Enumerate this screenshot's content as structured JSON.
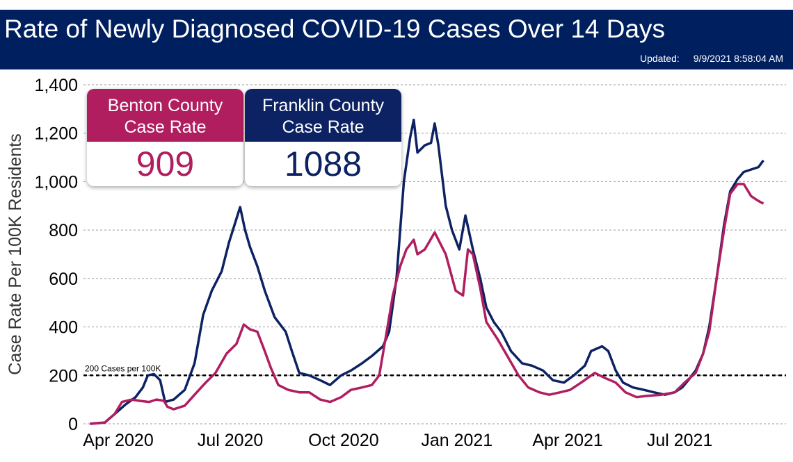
{
  "header": {
    "title": "Rate of Newly Diagnosed COVID-19 Cases Over 14 Days",
    "updated_label": "Updated:",
    "updated_value": "9/9/2021 8:58:04 AM"
  },
  "cards": [
    {
      "label_line1": "Benton County",
      "label_line2": "Case Rate",
      "value": "909",
      "color": "#b01e5f"
    },
    {
      "label_line1": "Franklin County",
      "label_line2": "Case Rate",
      "value": "1088",
      "color": "#0c2262"
    }
  ],
  "chart_data": {
    "type": "line",
    "title": "Rate of Newly Diagnosed COVID-19 Cases Over 14 Days",
    "ylabel": "Case Rate Per 100K Residents",
    "xlabel": "",
    "ylim": [
      0,
      1400
    ],
    "yticks": [
      0,
      200,
      400,
      600,
      800,
      1000,
      1200,
      1400
    ],
    "ytick_labels": [
      "0",
      "200",
      "400",
      "600",
      "800",
      "1,000",
      "1,200",
      "1,400"
    ],
    "x_unit": "days since 2020-04-01",
    "xticks": [
      0,
      91,
      183,
      275,
      365,
      456
    ],
    "xtick_labels": [
      "Apr 2020",
      "Jul 2020",
      "Oct 2020",
      "Jan 2021",
      "Apr 2021",
      "Jul 2021"
    ],
    "grid": true,
    "reference_line": {
      "value": 200,
      "label": "200 Cases per 100K"
    },
    "series": [
      {
        "name": "Franklin County",
        "color": "#0c2262",
        "x": [
          -23,
          -11,
          -3,
          6,
          14,
          20,
          24,
          29,
          34,
          38,
          45,
          54,
          62,
          69,
          76,
          84,
          90,
          95,
          99,
          103,
          107,
          113,
          119,
          127,
          136,
          141,
          147,
          155,
          164,
          172,
          181,
          189,
          198,
          206,
          215,
          220,
          226,
          232,
          237,
          240,
          243,
          249,
          254,
          257,
          260,
          266,
          271,
          277,
          282,
          288,
          294,
          299,
          305,
          311,
          319,
          328,
          336,
          345,
          353,
          362,
          370,
          379,
          384,
          393,
          398,
          404,
          410,
          418,
          427,
          435,
          444,
          452,
          458,
          463,
          469,
          475,
          480,
          486,
          492,
          497,
          503,
          508,
          514,
          520,
          524
        ],
        "y": [
          0,
          5,
          40,
          80,
          110,
          150,
          200,
          205,
          180,
          90,
          100,
          140,
          250,
          450,
          550,
          630,
          750,
          830,
          895,
          800,
          730,
          650,
          550,
          440,
          380,
          300,
          210,
          200,
          180,
          160,
          200,
          220,
          250,
          280,
          320,
          380,
          600,
          1000,
          1180,
          1255,
          1120,
          1150,
          1160,
          1240,
          1150,
          900,
          800,
          720,
          860,
          720,
          600,
          480,
          420,
          380,
          300,
          250,
          240,
          220,
          180,
          170,
          200,
          240,
          300,
          320,
          300,
          220,
          170,
          150,
          140,
          130,
          120,
          130,
          150,
          180,
          220,
          290,
          400,
          600,
          820,
          960,
          1010,
          1040,
          1050,
          1060,
          1088
        ]
      },
      {
        "name": "Benton County",
        "color": "#b01e5f",
        "x": [
          -23,
          -11,
          -3,
          3,
          11,
          17,
          25,
          31,
          37,
          40,
          45,
          54,
          62,
          71,
          79,
          88,
          96,
          102,
          107,
          113,
          119,
          124,
          130,
          138,
          147,
          155,
          164,
          172,
          181,
          189,
          198,
          206,
          212,
          218,
          223,
          229,
          234,
          240,
          243,
          249,
          257,
          266,
          274,
          280,
          284,
          288,
          294,
          299,
          308,
          316,
          325,
          333,
          342,
          350,
          359,
          367,
          376,
          387,
          395,
          404,
          412,
          421,
          429,
          441,
          452,
          460,
          469,
          475,
          480,
          486,
          492,
          497,
          503,
          508,
          514,
          520,
          524
        ],
        "y": [
          0,
          5,
          40,
          90,
          100,
          95,
          90,
          100,
          95,
          70,
          60,
          75,
          120,
          170,
          210,
          290,
          330,
          410,
          390,
          380,
          300,
          230,
          160,
          140,
          130,
          130,
          100,
          90,
          110,
          140,
          150,
          160,
          200,
          380,
          530,
          650,
          720,
          760,
          700,
          720,
          790,
          700,
          550,
          530,
          720,
          700,
          560,
          420,
          350,
          280,
          200,
          150,
          130,
          120,
          130,
          140,
          170,
          210,
          190,
          170,
          130,
          110,
          115,
          120,
          130,
          170,
          210,
          290,
          380,
          600,
          800,
          950,
          990,
          990,
          940,
          920,
          909
        ]
      }
    ]
  }
}
